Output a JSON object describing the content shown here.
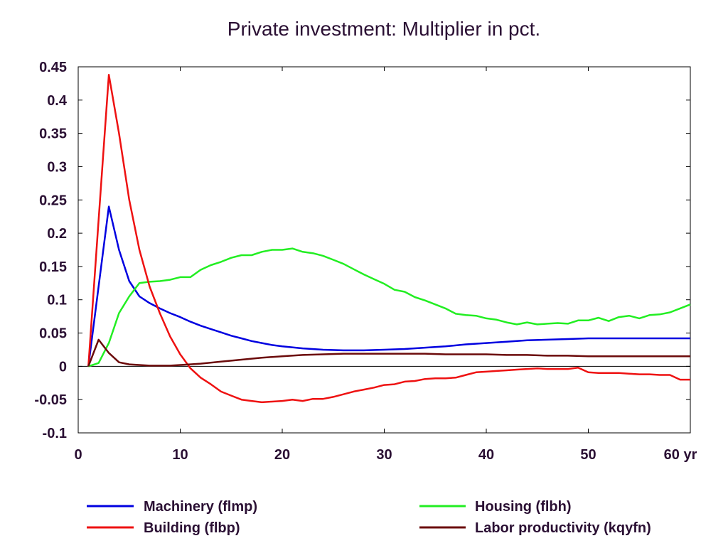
{
  "chart_data": {
    "type": "line",
    "title": "Private investment: Multiplier in pct.",
    "xlabel": "",
    "ylabel": "",
    "xlim": [
      0,
      60
    ],
    "ylim": [
      -0.1,
      0.45
    ],
    "x_ticks": [
      0,
      10,
      20,
      30,
      40,
      50,
      60
    ],
    "x_tick_labels": [
      "0",
      "10",
      "20",
      "30",
      "40",
      "50",
      "60 yr"
    ],
    "y_ticks": [
      -0.1,
      -0.05,
      0,
      0.05,
      0.1,
      0.15,
      0.2,
      0.25,
      0.3,
      0.35,
      0.4,
      0.45
    ],
    "y_tick_labels": [
      "-0.1",
      "-0.05",
      "0",
      "0.05",
      "0.1",
      "0.15",
      "0.2",
      "0.25",
      "0.3",
      "0.35",
      "0.4",
      "0.45"
    ],
    "grid": false,
    "zero_line": true,
    "legend_position": "bottom",
    "series": [
      {
        "name": "Machinery (flmp)",
        "color": "#0000e0",
        "points": [
          [
            1,
            0
          ],
          [
            2,
            0.12
          ],
          [
            3,
            0.24
          ],
          [
            4,
            0.175
          ],
          [
            5,
            0.128
          ],
          [
            6,
            0.105
          ],
          [
            7,
            0.095
          ],
          [
            8,
            0.087
          ],
          [
            9,
            0.08
          ],
          [
            10,
            0.074
          ],
          [
            11,
            0.067
          ],
          [
            12,
            0.061
          ],
          [
            13,
            0.056
          ],
          [
            14,
            0.051
          ],
          [
            15,
            0.046
          ],
          [
            16,
            0.042
          ],
          [
            17,
            0.038
          ],
          [
            18,
            0.035
          ],
          [
            19,
            0.032
          ],
          [
            20,
            0.03
          ],
          [
            22,
            0.027
          ],
          [
            24,
            0.025
          ],
          [
            26,
            0.024
          ],
          [
            28,
            0.024
          ],
          [
            30,
            0.025
          ],
          [
            32,
            0.026
          ],
          [
            34,
            0.028
          ],
          [
            36,
            0.03
          ],
          [
            38,
            0.033
          ],
          [
            40,
            0.035
          ],
          [
            42,
            0.037
          ],
          [
            44,
            0.039
          ],
          [
            46,
            0.04
          ],
          [
            48,
            0.041
          ],
          [
            50,
            0.042
          ],
          [
            55,
            0.042
          ],
          [
            60,
            0.042
          ]
        ]
      },
      {
        "name": "Housing (flbh)",
        "color": "#22ee22",
        "points": [
          [
            1,
            0
          ],
          [
            2,
            0.005
          ],
          [
            3,
            0.035
          ],
          [
            4,
            0.08
          ],
          [
            5,
            0.105
          ],
          [
            6,
            0.125
          ],
          [
            7,
            0.127
          ],
          [
            8,
            0.128
          ],
          [
            9,
            0.13
          ],
          [
            10,
            0.134
          ],
          [
            11,
            0.134
          ],
          [
            12,
            0.145
          ],
          [
            13,
            0.152
          ],
          [
            14,
            0.157
          ],
          [
            15,
            0.163
          ],
          [
            16,
            0.167
          ],
          [
            17,
            0.167
          ],
          [
            18,
            0.172
          ],
          [
            19,
            0.175
          ],
          [
            20,
            0.175
          ],
          [
            21,
            0.177
          ],
          [
            22,
            0.172
          ],
          [
            23,
            0.17
          ],
          [
            24,
            0.166
          ],
          [
            25,
            0.16
          ],
          [
            26,
            0.154
          ],
          [
            27,
            0.146
          ],
          [
            28,
            0.138
          ],
          [
            29,
            0.131
          ],
          [
            30,
            0.124
          ],
          [
            31,
            0.115
          ],
          [
            32,
            0.112
          ],
          [
            33,
            0.104
          ],
          [
            34,
            0.099
          ],
          [
            35,
            0.093
          ],
          [
            36,
            0.087
          ],
          [
            37,
            0.079
          ],
          [
            38,
            0.077
          ],
          [
            39,
            0.076
          ],
          [
            40,
            0.072
          ],
          [
            41,
            0.07
          ],
          [
            42,
            0.066
          ],
          [
            43,
            0.063
          ],
          [
            44,
            0.066
          ],
          [
            45,
            0.063
          ],
          [
            46,
            0.064
          ],
          [
            47,
            0.065
          ],
          [
            48,
            0.064
          ],
          [
            49,
            0.069
          ],
          [
            50,
            0.069
          ],
          [
            51,
            0.073
          ],
          [
            52,
            0.068
          ],
          [
            53,
            0.074
          ],
          [
            54,
            0.076
          ],
          [
            55,
            0.072
          ],
          [
            56,
            0.077
          ],
          [
            57,
            0.078
          ],
          [
            58,
            0.081
          ],
          [
            59,
            0.087
          ],
          [
            60,
            0.093
          ]
        ]
      },
      {
        "name": "Building (flbp)",
        "color": "#ee1111",
        "points": [
          [
            1,
            0
          ],
          [
            2,
            0.22
          ],
          [
            3,
            0.438
          ],
          [
            4,
            0.35
          ],
          [
            5,
            0.25
          ],
          [
            6,
            0.175
          ],
          [
            7,
            0.12
          ],
          [
            8,
            0.08
          ],
          [
            9,
            0.045
          ],
          [
            10,
            0.018
          ],
          [
            11,
            -0.003
          ],
          [
            12,
            -0.017
          ],
          [
            13,
            -0.027
          ],
          [
            14,
            -0.038
          ],
          [
            15,
            -0.044
          ],
          [
            16,
            -0.05
          ],
          [
            17,
            -0.052
          ],
          [
            18,
            -0.054
          ],
          [
            19,
            -0.053
          ],
          [
            20,
            -0.052
          ],
          [
            21,
            -0.05
          ],
          [
            22,
            -0.052
          ],
          [
            23,
            -0.049
          ],
          [
            24,
            -0.049
          ],
          [
            25,
            -0.046
          ],
          [
            26,
            -0.042
          ],
          [
            27,
            -0.038
          ],
          [
            28,
            -0.035
          ],
          [
            29,
            -0.032
          ],
          [
            30,
            -0.028
          ],
          [
            31,
            -0.027
          ],
          [
            32,
            -0.023
          ],
          [
            33,
            -0.022
          ],
          [
            34,
            -0.019
          ],
          [
            35,
            -0.018
          ],
          [
            36,
            -0.018
          ],
          [
            37,
            -0.017
          ],
          [
            38,
            -0.013
          ],
          [
            39,
            -0.009
          ],
          [
            40,
            -0.008
          ],
          [
            41,
            -0.007
          ],
          [
            42,
            -0.006
          ],
          [
            43,
            -0.005
          ],
          [
            44,
            -0.004
          ],
          [
            45,
            -0.003
          ],
          [
            46,
            -0.004
          ],
          [
            47,
            -0.004
          ],
          [
            48,
            -0.004
          ],
          [
            49,
            -0.002
          ],
          [
            50,
            -0.009
          ],
          [
            51,
            -0.01
          ],
          [
            52,
            -0.01
          ],
          [
            53,
            -0.01
          ],
          [
            54,
            -0.011
          ],
          [
            55,
            -0.012
          ],
          [
            56,
            -0.012
          ],
          [
            57,
            -0.013
          ],
          [
            58,
            -0.013
          ],
          [
            59,
            -0.02
          ],
          [
            60,
            -0.02
          ]
        ]
      },
      {
        "name": "Labor productivity (kqyfn)",
        "color": "#6b0a0a",
        "points": [
          [
            1,
            0
          ],
          [
            2,
            0.04
          ],
          [
            3,
            0.02
          ],
          [
            4,
            0.006
          ],
          [
            5,
            0.003
          ],
          [
            6,
            0.002
          ],
          [
            7,
            0.001
          ],
          [
            8,
            0.001
          ],
          [
            9,
            0.001
          ],
          [
            10,
            0.002
          ],
          [
            12,
            0.004
          ],
          [
            14,
            0.007
          ],
          [
            16,
            0.01
          ],
          [
            18,
            0.013
          ],
          [
            20,
            0.015
          ],
          [
            22,
            0.017
          ],
          [
            24,
            0.018
          ],
          [
            26,
            0.019
          ],
          [
            28,
            0.019
          ],
          [
            30,
            0.019
          ],
          [
            32,
            0.019
          ],
          [
            34,
            0.019
          ],
          [
            36,
            0.018
          ],
          [
            38,
            0.018
          ],
          [
            40,
            0.018
          ],
          [
            42,
            0.017
          ],
          [
            44,
            0.017
          ],
          [
            46,
            0.016
          ],
          [
            48,
            0.016
          ],
          [
            50,
            0.015
          ],
          [
            55,
            0.015
          ],
          [
            60,
            0.015
          ]
        ]
      }
    ]
  }
}
